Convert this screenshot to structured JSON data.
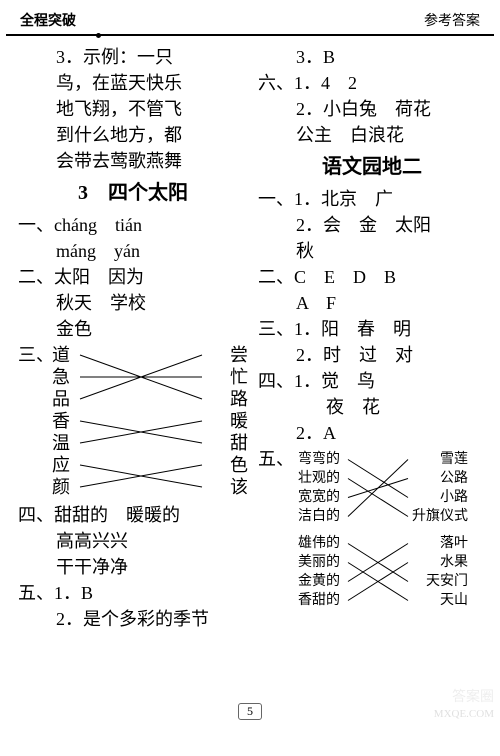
{
  "header": {
    "left": "全程突破",
    "right": "参考答案"
  },
  "page_number": "5",
  "left_col": {
    "para3": [
      "3．示例：一只",
      "鸟，在蓝天快乐",
      "地飞翔，不管飞",
      "到什么地方，都",
      "会带去莺歌燕舞"
    ],
    "title": "3　四个太阳",
    "yi": {
      "label": "一、",
      "r1a": "cháng",
      "r1b": "tián",
      "r2a": "máng",
      "r2b": "yán"
    },
    "er": {
      "label": "二、",
      "r1": "太阳　因为",
      "r2": "秋天　学校",
      "r3": "金色"
    },
    "san": {
      "label": "三、",
      "left": [
        "道",
        "急",
        "品",
        "香",
        "温",
        "应",
        "颜"
      ],
      "right": [
        "尝",
        "忙",
        "路",
        "暖",
        "甜",
        "色",
        "该"
      ],
      "edges": [
        [
          0,
          2
        ],
        [
          1,
          1
        ],
        [
          2,
          0
        ],
        [
          3,
          4
        ],
        [
          4,
          3
        ],
        [
          5,
          6
        ],
        [
          6,
          5
        ]
      ]
    },
    "si": {
      "label": "四、",
      "r1": "甜甜的　暖暖的",
      "r2": "高高兴兴",
      "r3": "干干净净"
    },
    "wu": {
      "label": "五、",
      "r1": "1．B",
      "r2": "2．是个多彩的季节"
    }
  },
  "right_col": {
    "first": [
      "3．B"
    ],
    "liu": {
      "label": "六、",
      "r1": "1．4　2",
      "r2": "2．小白兔　荷花",
      "r3": "公主　白浪花"
    },
    "title": "语文园地二",
    "yi": {
      "label": "一、",
      "r1": "1．北京　广",
      "r2": "2．会　金　太阳",
      "r3": "秋"
    },
    "er": {
      "label": "二、",
      "r1": "C　E　D　B",
      "r2": "A　F"
    },
    "san": {
      "label": "三、",
      "r1": "1．阳　春　明",
      "r2": "2．时　过　对"
    },
    "si": {
      "label": "四、",
      "r1": "1．觉　鸟",
      "r2": "夜　花",
      "r3": "2．A"
    },
    "wu": {
      "label": "五、",
      "block1": {
        "left": [
          "弯弯的",
          "壮观的",
          "宽宽的",
          "洁白的"
        ],
        "right": [
          "雪莲",
          "公路",
          "小路",
          "升旗仪式"
        ],
        "edges": [
          [
            0,
            2
          ],
          [
            1,
            3
          ],
          [
            2,
            1
          ],
          [
            3,
            0
          ]
        ]
      },
      "block2": {
        "left": [
          "雄伟的",
          "美丽的",
          "金黄的",
          "香甜的"
        ],
        "right": [
          "落叶",
          "水果",
          "天安门",
          "天山"
        ],
        "edges": [
          [
            0,
            2
          ],
          [
            1,
            3
          ],
          [
            2,
            0
          ],
          [
            3,
            1
          ]
        ]
      }
    }
  },
  "style": {
    "font_base": 18,
    "font_small": 14,
    "line_color": "#000",
    "line_width": 1
  }
}
